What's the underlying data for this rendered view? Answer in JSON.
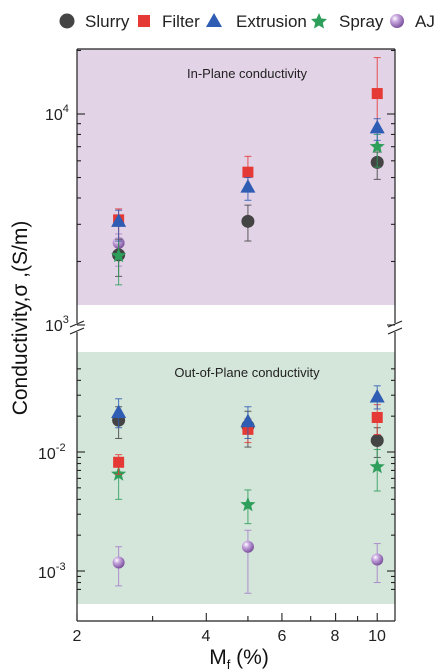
{
  "legend": [
    {
      "name": "Slurry",
      "color": "#444444",
      "marker": "circle"
    },
    {
      "name": "Filter",
      "color": "#e53935",
      "marker": "square"
    },
    {
      "name": "Extrusion",
      "color": "#2f5db3",
      "marker": "triangle"
    },
    {
      "name": "Spray",
      "color": "#2e9e5b",
      "marker": "star"
    },
    {
      "name": "AJ",
      "color": "#a77ec9",
      "marker": "sphere"
    }
  ],
  "axes": {
    "xlabel_main": "M",
    "xlabel_sub": "f",
    "xlabel_unit": " (%)",
    "ylabel": "Conductivity,σ ,(S/m)",
    "x_ticks": [
      "2",
      "4",
      "6",
      "8",
      "10"
    ],
    "upper_ticks": [
      {
        "base": "10",
        "exp": "4"
      },
      {
        "base": "10",
        "exp": "3"
      }
    ],
    "lower_ticks": [
      {
        "base": "10",
        "exp": "-2"
      },
      {
        "base": "10",
        "exp": "-3"
      }
    ]
  },
  "chart_data": [
    {
      "type": "scatter",
      "title": "In-Plane conductivity",
      "xscale": "log",
      "yscale": "log",
      "xlim": [
        2,
        11
      ],
      "ylim": [
        1150,
        20000
      ],
      "background": "#e2d3e6",
      "x": [
        2.5,
        5,
        10
      ],
      "series": [
        {
          "name": "Slurry",
          "values": [
            2150,
            3100,
            5900
          ],
          "err_low": [
            1700,
            2500,
            4900
          ],
          "err_high": [
            2550,
            3700,
            6600
          ]
        },
        {
          "name": "Filter",
          "values": [
            3150,
            5300,
            12500
          ],
          "err_low": [
            2500,
            4300,
            8500
          ],
          "err_high": [
            3550,
            6300,
            18500
          ]
        },
        {
          "name": "Extrusion",
          "values": [
            3100,
            4500,
            8600
          ],
          "err_low": [
            2500,
            3900,
            7500
          ],
          "err_high": [
            3500,
            5000,
            9500
          ]
        },
        {
          "name": "Spray",
          "values": [
            2130,
            null,
            7000
          ],
          "err_low": [
            1550,
            null,
            5600
          ],
          "err_high": [
            2500,
            null,
            8000
          ]
        },
        {
          "name": "AJ",
          "values": [
            2450,
            null,
            null
          ],
          "err_low": [
            1900,
            null,
            null
          ],
          "err_high": [
            2700,
            null,
            null
          ]
        }
      ]
    },
    {
      "type": "scatter",
      "title": "Out-of-Plane conductivity",
      "xscale": "log",
      "yscale": "log",
      "xlim": [
        2,
        11
      ],
      "ylim": [
        0.00065,
        0.065
      ],
      "background": "#d4e5da",
      "x": [
        2.5,
        5,
        10
      ],
      "series": [
        {
          "name": "Slurry",
          "values": [
            0.0185,
            0.0165,
            0.0125
          ],
          "err_low": [
            0.013,
            0.011,
            0.009
          ],
          "err_high": [
            0.024,
            0.022,
            0.016
          ]
        },
        {
          "name": "Filter",
          "values": [
            0.0082,
            0.0155,
            0.0195
          ],
          "err_low": [
            0.0065,
            0.012,
            0.014
          ],
          "err_high": [
            0.0095,
            0.019,
            0.025
          ]
        },
        {
          "name": "Extrusion",
          "values": [
            0.0215,
            0.018,
            0.029
          ],
          "err_low": [
            0.016,
            0.013,
            0.023
          ],
          "err_high": [
            0.028,
            0.024,
            0.036
          ]
        },
        {
          "name": "Spray",
          "values": [
            0.0065,
            0.0036,
            0.0075
          ],
          "err_low": [
            0.004,
            0.0025,
            0.0047
          ],
          "err_high": [
            0.0085,
            0.0048,
            0.0105
          ]
        },
        {
          "name": "AJ",
          "values": [
            0.00118,
            0.0016,
            0.00125
          ],
          "err_low": [
            0.00075,
            0.00065,
            0.0008
          ],
          "err_high": [
            0.0016,
            0.0022,
            0.0017
          ]
        }
      ]
    }
  ]
}
